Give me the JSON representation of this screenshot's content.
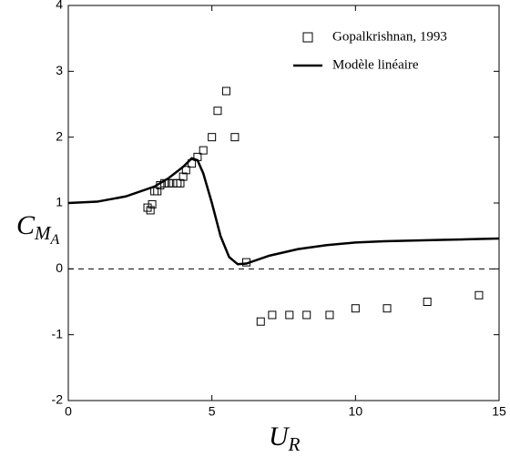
{
  "chart_data": {
    "type": "scatter",
    "x_label": {
      "base": "U",
      "sub": "R"
    },
    "y_label": {
      "base": "C",
      "sub": "M",
      "subsub": "A"
    },
    "xlim": [
      0,
      15
    ],
    "ylim": [
      -2,
      4
    ],
    "xticks": [
      0,
      5,
      10,
      15
    ],
    "yticks": [
      -2,
      -1,
      0,
      1,
      2,
      3,
      4
    ],
    "reference_line": {
      "y": 0,
      "style": "dashed"
    },
    "legend": "upper right",
    "series": [
      {
        "name": "Gopalkrishnan, 1993",
        "kind": "marker",
        "color": "#000000",
        "x": [
          2.76,
          2.86,
          2.92,
          3.0,
          3.1,
          3.2,
          3.35,
          3.5,
          3.65,
          3.8,
          3.9,
          4.0,
          4.1,
          4.3,
          4.5,
          4.7,
          5.0,
          5.2,
          5.5,
          5.8,
          6.2,
          6.7,
          7.1,
          7.7,
          8.3,
          9.1,
          10.0,
          11.1,
          12.5,
          14.3
        ],
        "values": [
          0.93,
          0.89,
          0.98,
          1.18,
          1.18,
          1.27,
          1.3,
          1.3,
          1.3,
          1.3,
          1.3,
          1.4,
          1.5,
          1.6,
          1.7,
          1.8,
          2.0,
          2.4,
          2.7,
          2.0,
          0.1,
          -0.8,
          -0.7,
          -0.7,
          -0.7,
          -0.7,
          -0.6,
          -0.6,
          -0.5,
          -0.4
        ]
      },
      {
        "name": "Modèle linéaire",
        "kind": "line",
        "color": "#000000",
        "x": [
          0,
          1,
          2,
          3,
          3.5,
          4,
          4.3,
          4.5,
          4.7,
          5,
          5.3,
          5.6,
          5.9,
          6.2,
          7,
          8,
          9,
          10,
          11,
          12,
          13,
          14,
          15
        ],
        "values": [
          1,
          1.02,
          1.1,
          1.25,
          1.38,
          1.55,
          1.68,
          1.65,
          1.45,
          1.0,
          0.5,
          0.18,
          0.07,
          0.08,
          0.2,
          0.3,
          0.36,
          0.4,
          0.42,
          0.43,
          0.44,
          0.45,
          0.46
        ]
      }
    ]
  }
}
